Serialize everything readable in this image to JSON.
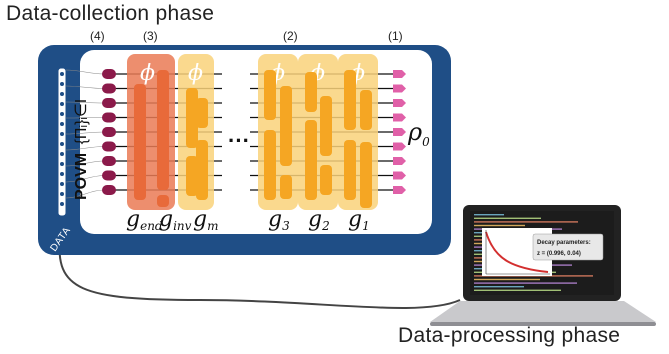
{
  "titles": {
    "collection": "Data-collection phase",
    "processing": "Data-processing phase"
  },
  "stages": [
    "(4)",
    "(3)",
    "(2)",
    "(1)"
  ],
  "gates": {
    "phi": "ϕ",
    "g_end": "g",
    "g_end_sub": "end",
    "g_inv": "g",
    "g_inv_sub": "inv",
    "g_m": "g",
    "g_m_sub": "m",
    "g3": "g",
    "g3_sub": "3",
    "g2": "g",
    "g2_sub": "2",
    "g1": "g",
    "g1_sub": "1",
    "ellipsis": "···"
  },
  "state": {
    "symbol": "ρ",
    "sub": "0"
  },
  "povm": {
    "label": "POVM",
    "set": "{Πᵢ}ᵢ∈I"
  },
  "data_label": "DATA",
  "laptop": {
    "popup_title": "Decay parameters:",
    "popup_value": "z = (0.996, 0.04)"
  },
  "colors": {
    "frame": "#1f4e86",
    "wire_start": "#8b1a4a",
    "wire_end": "#e060a8",
    "gate": "#f5a623",
    "phi_block": "#f7c54a",
    "end_block": "#e8744a",
    "decay_curve": "#d32f2f"
  }
}
